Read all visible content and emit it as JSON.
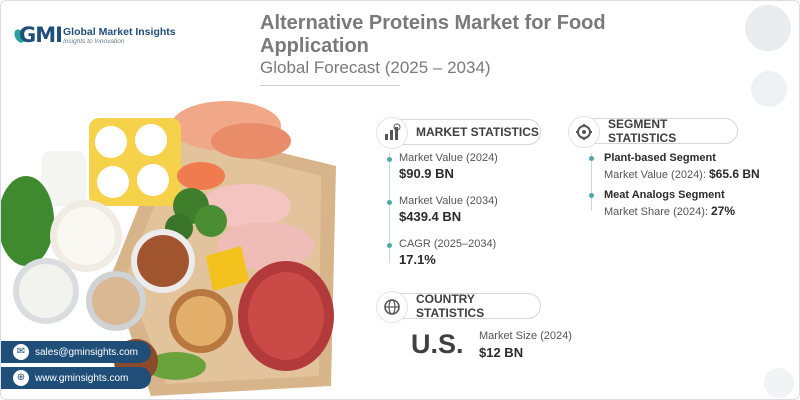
{
  "brand": {
    "name": "Global Market Insights",
    "tagline": "Insights to Innovation",
    "mark": "GMI"
  },
  "header": {
    "title": "Alternative Proteins Market for Food Application",
    "subtitle": "Global Forecast (2025 – 2034)"
  },
  "market_statistics": {
    "heading": "MARKET STATISTICS",
    "icon": "bar-chart-globe-icon",
    "items": [
      {
        "label": "Market Value (2024)",
        "value": "$90.9 BN"
      },
      {
        "label": "Market Value (2034)",
        "value": "$439.4 BN"
      },
      {
        "label": "CAGR (2025–2034)",
        "value": "17.1%"
      }
    ]
  },
  "segment_statistics": {
    "heading": "SEGMENT STATISTICS",
    "icon": "segment-gear-icon",
    "items": [
      {
        "title": "Plant-based Segment",
        "label": "Market Value (2024):",
        "value": "$65.6 BN"
      },
      {
        "title": "Meat Analogs Segment",
        "label": "Market Share (2024):",
        "value": "27%"
      }
    ]
  },
  "country_statistics": {
    "heading": "COUNTRY STATISTICS",
    "icon": "globe-icon",
    "country": "U.S.",
    "label": "Market Size (2024)",
    "value": "$12 BN"
  },
  "contact": {
    "email": "sales@gminsights.com",
    "website": "www.gminsights.com"
  },
  "colors": {
    "primary": "#1f4e79",
    "accent": "#4ea8a8",
    "heading_gray": "#7a7a7a"
  }
}
